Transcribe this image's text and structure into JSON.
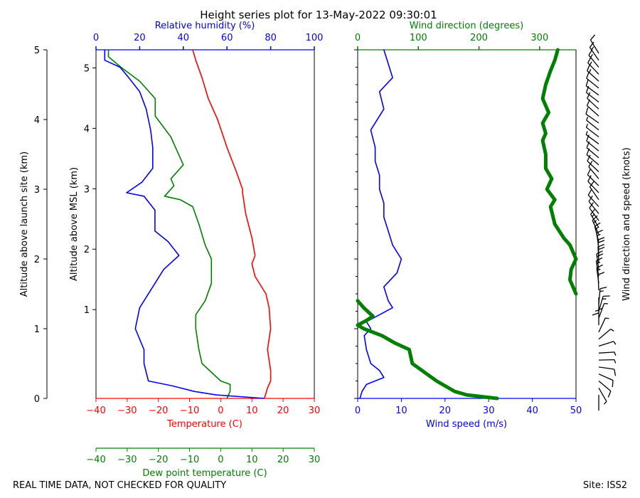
{
  "title": "Height series plot for 13-May-2022 09:30:01",
  "footer_left": "REAL TIME DATA, NOT CHECKED FOR QUALITY",
  "footer_right": "Site: ISS2",
  "colors": {
    "temperature": "#ff0000",
    "dewpoint": "#008000",
    "humidity": "#0000ff",
    "wind_speed": "#0000ff",
    "wind_direction": "#008000",
    "axis": "#000000"
  },
  "chart_data": [
    {
      "type": "line",
      "name": "thermo",
      "axes": {
        "launch_alt": {
          "label": "Altitude above launch site (km)",
          "range": [
            0,
            5
          ],
          "ticks": [
            0,
            1,
            2,
            3,
            4,
            5
          ]
        },
        "msl_alt": {
          "label": "Altitude above MSL (km)",
          "range": [
            -0.47,
            5.3
          ],
          "ticks": [
            1,
            2,
            3,
            4,
            5
          ]
        },
        "humidity": {
          "label": "Relative humidity (%)",
          "range": [
            0,
            100
          ],
          "ticks": [
            0,
            20,
            40,
            60,
            80,
            100
          ]
        },
        "temperature": {
          "label": "Temperature (C)",
          "range": [
            -40,
            30
          ],
          "ticks": [
            -40,
            -30,
            -20,
            -10,
            0,
            10,
            20,
            30
          ]
        },
        "dewpoint": {
          "label": "Dew point temperature (C)",
          "range": [
            -40,
            30
          ],
          "ticks": [
            -40,
            -30,
            -20,
            -10,
            0,
            10,
            20,
            30
          ]
        }
      },
      "series": [
        {
          "name": "Temperature",
          "axis": "temperature",
          "color": "#ff0000",
          "points": [
            [
              0.0,
              14
            ],
            [
              0.15,
              15
            ],
            [
              0.25,
              16
            ],
            [
              0.4,
              16
            ],
            [
              0.7,
              15
            ],
            [
              1.0,
              16
            ],
            [
              1.3,
              15.5
            ],
            [
              1.5,
              14.5
            ],
            [
              1.75,
              11
            ],
            [
              1.93,
              10
            ],
            [
              2.05,
              11
            ],
            [
              2.3,
              10
            ],
            [
              2.65,
              8
            ],
            [
              2.95,
              7
            ],
            [
              3.0,
              7
            ],
            [
              3.25,
              5
            ],
            [
              3.6,
              2
            ],
            [
              4.0,
              -1
            ],
            [
              4.3,
              -4
            ],
            [
              4.6,
              -6
            ],
            [
              4.85,
              -8
            ],
            [
              5.0,
              -9
            ]
          ]
        },
        {
          "name": "Dew point temperature",
          "axis": "temperature",
          "color": "#008000",
          "points": [
            [
              0.0,
              2
            ],
            [
              0.1,
              3
            ],
            [
              0.2,
              3
            ],
            [
              0.25,
              0
            ],
            [
              0.5,
              -6
            ],
            [
              0.7,
              -7
            ],
            [
              1.0,
              -8
            ],
            [
              1.2,
              -8
            ],
            [
              1.4,
              -5
            ],
            [
              1.65,
              -3
            ],
            [
              2.0,
              -3
            ],
            [
              2.2,
              -5
            ],
            [
              2.5,
              -7
            ],
            [
              2.75,
              -9
            ],
            [
              2.85,
              -13
            ],
            [
              2.9,
              -18
            ],
            [
              3.05,
              -15
            ],
            [
              3.15,
              -16
            ],
            [
              3.35,
              -12
            ],
            [
              3.55,
              -14
            ],
            [
              3.75,
              -16
            ],
            [
              4.05,
              -21
            ],
            [
              4.3,
              -21
            ],
            [
              4.55,
              -26
            ],
            [
              4.75,
              -32
            ],
            [
              4.9,
              -36
            ],
            [
              5.0,
              -36
            ]
          ]
        },
        {
          "name": "Relative humidity",
          "axis": "humidity",
          "color": "#0000ff",
          "points": [
            [
              0.0,
              77
            ],
            [
              0.05,
              55
            ],
            [
              0.1,
              45
            ],
            [
              0.18,
              35
            ],
            [
              0.25,
              24
            ],
            [
              0.5,
              22
            ],
            [
              0.7,
              22
            ],
            [
              1.0,
              18
            ],
            [
              1.3,
              20
            ],
            [
              1.55,
              25
            ],
            [
              1.85,
              31
            ],
            [
              2.05,
              38
            ],
            [
              2.25,
              33
            ],
            [
              2.4,
              27
            ],
            [
              2.7,
              27
            ],
            [
              2.9,
              22
            ],
            [
              2.95,
              14
            ],
            [
              3.1,
              21
            ],
            [
              3.3,
              26
            ],
            [
              3.6,
              26
            ],
            [
              3.85,
              25
            ],
            [
              4.15,
              23
            ],
            [
              4.4,
              20
            ],
            [
              4.6,
              15
            ],
            [
              4.75,
              11
            ],
            [
              4.85,
              4
            ],
            [
              4.95,
              4
            ],
            [
              5.0,
              4
            ]
          ]
        }
      ]
    },
    {
      "type": "line",
      "name": "wind",
      "axes": {
        "wind_speed": {
          "label": "Wind speed (m/s)",
          "range": [
            0,
            50
          ],
          "ticks": [
            0,
            10,
            20,
            30,
            40,
            50
          ]
        },
        "wind_direction": {
          "label": "Wind direction (degrees)",
          "range": [
            0,
            360
          ],
          "ticks": [
            0,
            100,
            200,
            300
          ]
        },
        "barbs": {
          "label": "Wind direction and speed (knots)"
        }
      },
      "series": [
        {
          "name": "Wind speed",
          "axis": "wind_speed",
          "color": "#0000ff",
          "points": [
            [
              0.0,
              0.5
            ],
            [
              0.1,
              1
            ],
            [
              0.2,
              2
            ],
            [
              0.3,
              6
            ],
            [
              0.4,
              5
            ],
            [
              0.5,
              3
            ],
            [
              0.7,
              2
            ],
            [
              0.9,
              1.5
            ],
            [
              1.0,
              3
            ],
            [
              1.1,
              2
            ],
            [
              1.2,
              5
            ],
            [
              1.3,
              8
            ],
            [
              1.4,
              7
            ],
            [
              1.6,
              6
            ],
            [
              1.8,
              9
            ],
            [
              2.0,
              10
            ],
            [
              2.2,
              8
            ],
            [
              2.4,
              7
            ],
            [
              2.6,
              6
            ],
            [
              2.8,
              6
            ],
            [
              3.0,
              5
            ],
            [
              3.2,
              5
            ],
            [
              3.4,
              4
            ],
            [
              3.6,
              4
            ],
            [
              3.85,
              3
            ],
            [
              4.15,
              6
            ],
            [
              4.4,
              5
            ],
            [
              4.6,
              8
            ],
            [
              4.8,
              7
            ],
            [
              5.0,
              6
            ]
          ]
        },
        {
          "name": "Wind direction",
          "axis": "wind_direction",
          "color": "#008000",
          "points": [
            [
              0.0,
              230
            ],
            [
              0.05,
              180
            ],
            [
              0.1,
              160
            ],
            [
              0.25,
              130
            ],
            [
              0.5,
              90
            ],
            [
              0.7,
              85
            ],
            [
              0.8,
              60
            ],
            [
              0.9,
              40
            ],
            [
              1.0,
              10
            ],
            [
              1.05,
              0
            ],
            [
              1.12,
              15
            ],
            [
              1.18,
              25
            ],
            [
              1.3,
              10
            ],
            [
              1.4,
              0
            ]
          ]
        },
        {
          "name": "Wind direction (upper)",
          "axis": "wind_direction",
          "color": "#008000",
          "points": [
            [
              1.5,
              360
            ],
            [
              1.7,
              350
            ],
            [
              1.85,
              352
            ],
            [
              2.0,
              360
            ],
            [
              2.2,
              350
            ],
            [
              2.3,
              340
            ],
            [
              2.5,
              325
            ],
            [
              2.75,
              318
            ],
            [
              2.85,
              325
            ],
            [
              3.0,
              312
            ],
            [
              3.15,
              320
            ],
            [
              3.3,
              310
            ],
            [
              3.5,
              310
            ],
            [
              3.7,
              305
            ],
            [
              3.8,
              310
            ],
            [
              3.95,
              305
            ],
            [
              4.1,
              315
            ],
            [
              4.3,
              305
            ],
            [
              4.5,
              310
            ],
            [
              4.7,
              318
            ],
            [
              4.85,
              325
            ],
            [
              5.0,
              330
            ]
          ]
        }
      ]
    }
  ]
}
